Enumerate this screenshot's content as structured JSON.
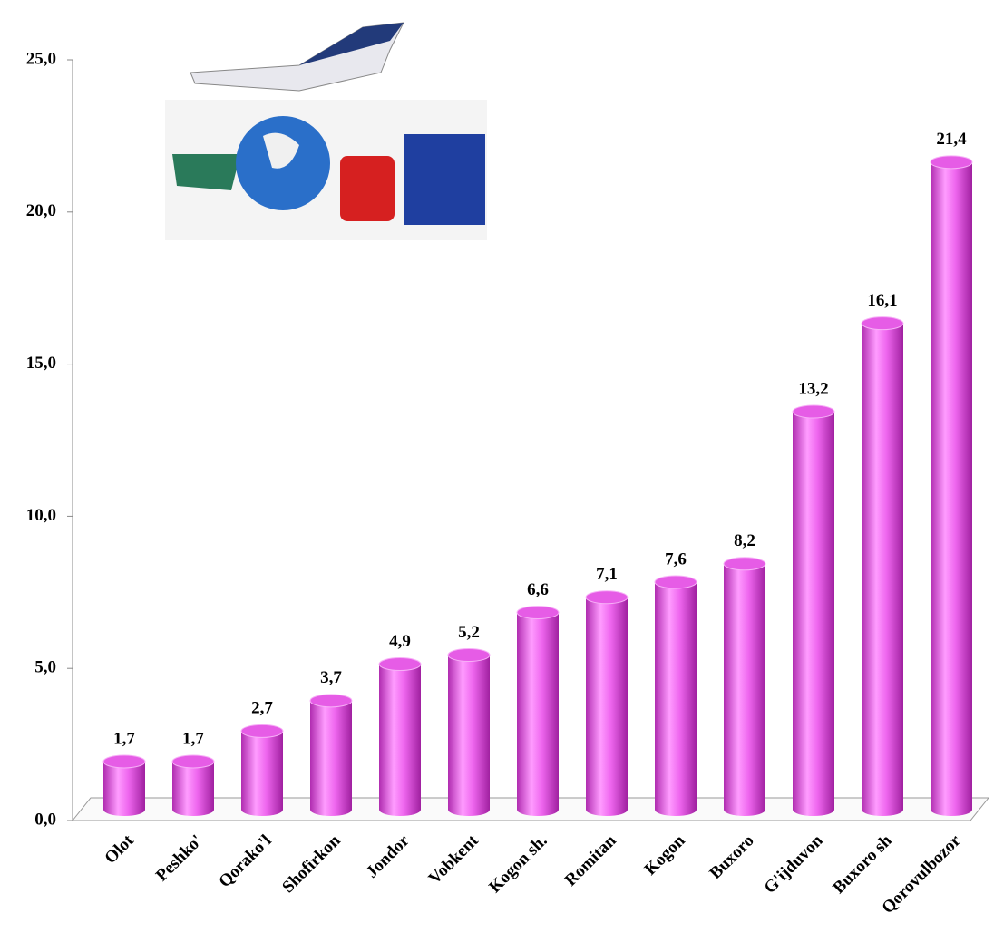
{
  "chart_data": {
    "type": "bar",
    "categories": [
      "Olot",
      "Peshko'",
      "Qorako'l",
      "Shofirkon",
      "Jondor",
      "Vobkent",
      "Kogon sh.",
      "Romitan",
      "Kogon",
      "Buxoro",
      "G'ijduvon",
      "Buxoro sh",
      "Qorovulbozor"
    ],
    "values": [
      1.7,
      1.7,
      2.7,
      3.7,
      4.9,
      5.2,
      6.6,
      7.1,
      7.6,
      8.2,
      13.2,
      16.1,
      21.4
    ],
    "value_labels": [
      "1,7",
      "1,7",
      "2,7",
      "3,7",
      "4,9",
      "5,2",
      "6,6",
      "7,1",
      "7,6",
      "8,2",
      "13,2",
      "16,1",
      "21,4"
    ],
    "color": "#e65ce6",
    "ylim": [
      0,
      25
    ],
    "yticks": [
      {
        "value": 0,
        "label": "0,0"
      },
      {
        "value": 5,
        "label": "5,0"
      },
      {
        "value": 10,
        "label": "10,0"
      },
      {
        "value": 15,
        "label": "15,0"
      },
      {
        "value": 20,
        "label": "20,0"
      },
      {
        "value": 25,
        "label": "25,0"
      }
    ]
  }
}
